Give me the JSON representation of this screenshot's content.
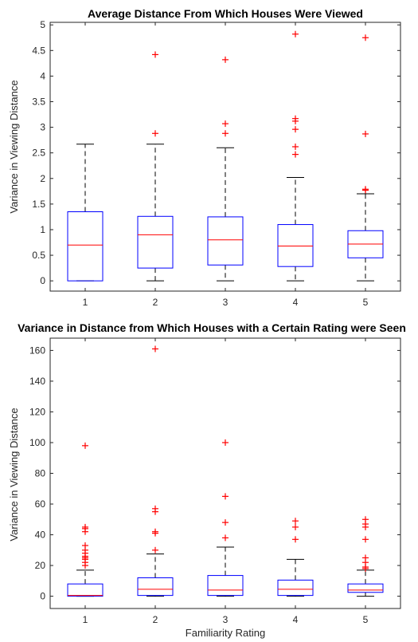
{
  "chart_data": [
    {
      "type": "boxplot",
      "title": "Average Distance From Which Houses Were Viewed",
      "xlabel": "",
      "ylabel": "Variance in Viewing Distance",
      "categories": [
        "1",
        "2",
        "3",
        "4",
        "5"
      ],
      "ylim": [
        -0.2,
        5.05
      ],
      "yticks": [
        0,
        0.5,
        1,
        1.5,
        2,
        2.5,
        3,
        3.5,
        4,
        4.5,
        5
      ],
      "ytick_labels": [
        "0",
        "0.5",
        "1",
        "1.5",
        "2",
        "2.5",
        "3",
        "3.5",
        "4",
        "4.5",
        "5"
      ],
      "grid": false,
      "boxes": [
        {
          "category": "1",
          "whisker_low": 0,
          "q1": 0.0,
          "median": 0.7,
          "q3": 1.35,
          "whisker_high": 2.67,
          "outliers": []
        },
        {
          "category": "2",
          "whisker_low": 0,
          "q1": 0.25,
          "median": 0.9,
          "q3": 1.26,
          "whisker_high": 2.67,
          "outliers": [
            2.88,
            4.42
          ]
        },
        {
          "category": "3",
          "whisker_low": 0,
          "q1": 0.31,
          "median": 0.8,
          "q3": 1.25,
          "whisker_high": 2.6,
          "outliers": [
            2.88,
            3.07,
            4.32
          ]
        },
        {
          "category": "4",
          "whisker_low": 0,
          "q1": 0.28,
          "median": 0.68,
          "q3": 1.1,
          "whisker_high": 2.02,
          "outliers": [
            2.47,
            2.62,
            2.96,
            3.12,
            3.17,
            4.82
          ]
        },
        {
          "category": "5",
          "whisker_low": 0,
          "q1": 0.45,
          "median": 0.72,
          "q3": 0.98,
          "whisker_high": 1.7,
          "outliers": [
            1.77,
            1.79,
            2.87,
            4.75
          ]
        }
      ]
    },
    {
      "type": "boxplot",
      "title": "Variance in Distance from Which Houses with a Certain Rating were Seen",
      "xlabel": "Familiarity Rating",
      "ylabel": "Variance in Viewing Distance",
      "categories": [
        "1",
        "2",
        "3",
        "4",
        "5"
      ],
      "ylim": [
        -8,
        168
      ],
      "yticks": [
        0,
        20,
        40,
        60,
        80,
        100,
        120,
        140,
        160
      ],
      "ytick_labels": [
        "0",
        "20",
        "40",
        "60",
        "80",
        "100",
        "120",
        "140",
        "160"
      ],
      "grid": false,
      "boxes": [
        {
          "category": "1",
          "whisker_low": 0,
          "q1": 0.0,
          "median": 0.5,
          "q3": 8,
          "whisker_high": 17,
          "outliers": [
            20,
            22,
            24,
            25,
            26,
            28,
            30,
            33,
            42,
            44,
            45,
            98
          ]
        },
        {
          "category": "2",
          "whisker_low": 0,
          "q1": 0.5,
          "median": 4.5,
          "q3": 12,
          "whisker_high": 27.5,
          "outliers": [
            30,
            41,
            42,
            55,
            57,
            161
          ]
        },
        {
          "category": "3",
          "whisker_low": 0,
          "q1": 0.5,
          "median": 4,
          "q3": 13.5,
          "whisker_high": 32,
          "outliers": [
            38,
            48,
            65,
            100
          ]
        },
        {
          "category": "4",
          "whisker_low": 0,
          "q1": 0.5,
          "median": 4.5,
          "q3": 10.5,
          "whisker_high": 24,
          "outliers": [
            37,
            45,
            49
          ]
        },
        {
          "category": "5",
          "whisker_low": 0,
          "q1": 2.5,
          "median": 4,
          "q3": 8,
          "whisker_high": 17,
          "outliers": [
            18,
            19,
            22,
            25,
            37,
            45,
            47,
            50
          ]
        }
      ]
    }
  ],
  "colors": {
    "box": "#0000ff",
    "median": "#ff0000",
    "outlier": "#ff0000",
    "whisker": "#000000",
    "axes": "#262626"
  }
}
